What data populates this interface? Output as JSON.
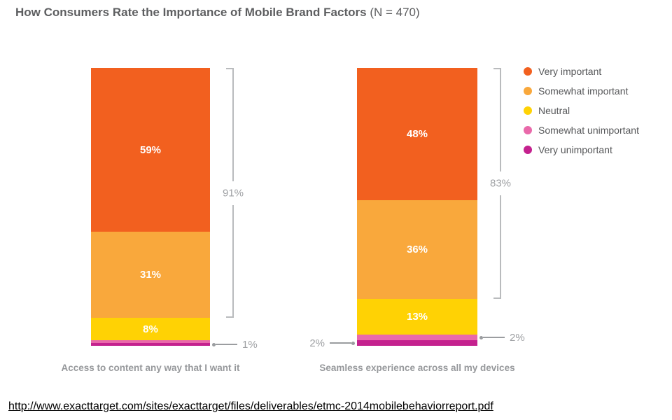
{
  "header": {
    "title": "How Consumers Rate the Importance of Mobile Brand Factors",
    "sample_note": "(N = 470)"
  },
  "footer": {
    "source_url": "http://www.exacttarget.com/sites/exacttarget/files/deliverables/etmc-2014mobilebehaviorreport.pdf"
  },
  "chart_data": {
    "type": "bar",
    "stacked": true,
    "title": "How Consumers Rate the Importance of Mobile Brand Factors",
    "sample_note": "(N = 470)",
    "legend_position": "right",
    "legend": [
      {
        "label": "Very important",
        "color": "#F2601F"
      },
      {
        "label": "Somewhat important",
        "color": "#F9A83C"
      },
      {
        "label": "Neutral",
        "color": "#FFD204"
      },
      {
        "label": "Somewhat unimportant",
        "color": "#E969AA"
      },
      {
        "label": "Very unimportant",
        "color": "#C4218E"
      }
    ],
    "bars": [
      {
        "label": "Access to content any way that I want it",
        "segments": [
          {
            "category": "Very important",
            "value": 59,
            "label": "59%"
          },
          {
            "category": "Somewhat important",
            "value": 31,
            "label": "31%"
          },
          {
            "category": "Neutral",
            "value": 8,
            "label": "8%"
          },
          {
            "category": "Somewhat unimportant",
            "value": 1,
            "label": ""
          },
          {
            "category": "Very unimportant",
            "value": 1,
            "label": ""
          }
        ],
        "bracket": {
          "label": "91%",
          "segment_span": [
            0,
            1
          ]
        },
        "callouts": [
          {
            "side": "right",
            "label": "1%",
            "segment_index": 4
          }
        ]
      },
      {
        "label": "Seamless experience across all my devices",
        "segments": [
          {
            "category": "Very important",
            "value": 48,
            "label": "48%"
          },
          {
            "category": "Somewhat important",
            "value": 36,
            "label": "36%"
          },
          {
            "category": "Neutral",
            "value": 13,
            "label": "13%"
          },
          {
            "category": "Somewhat unimportant",
            "value": 2,
            "label": ""
          },
          {
            "category": "Very unimportant",
            "value": 2,
            "label": ""
          }
        ],
        "bracket": {
          "label": "83%",
          "segment_span": [
            0,
            1
          ]
        },
        "callouts": [
          {
            "side": "left",
            "label": "2%",
            "segment_index": 4
          },
          {
            "side": "right",
            "label": "2%",
            "segment_index": 3
          }
        ]
      }
    ]
  }
}
